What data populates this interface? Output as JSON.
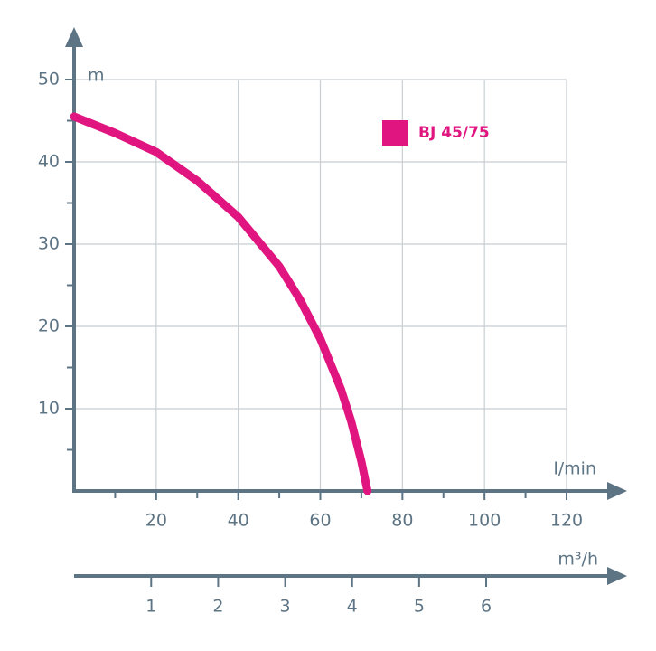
{
  "chart_data": {
    "type": "line",
    "ylabel": "m",
    "xlabel": "l/min",
    "x2label": "m³/h",
    "x": [
      0,
      10,
      20,
      30,
      40,
      50,
      55,
      60,
      65,
      67.5,
      70,
      71.5
    ],
    "series": [
      {
        "name": "BJ 45/75",
        "color": "#e0157f",
        "values": [
          45.5,
          43.5,
          41.2,
          37.7,
          33.3,
          27.3,
          23.3,
          18.5,
          12.4,
          8.5,
          3.6,
          0
        ]
      }
    ],
    "xlim": [
      0,
      120
    ],
    "ylim": [
      0,
      50
    ],
    "xticks": [
      20,
      40,
      60,
      80,
      100,
      120
    ],
    "yticks": [
      10,
      20,
      30,
      40,
      50
    ],
    "xminor": [
      10,
      30,
      50,
      70,
      90,
      110
    ],
    "yminor": [
      5,
      15,
      25,
      35,
      45
    ],
    "x2lim": [
      -0.15,
      7.2
    ],
    "x2ticks": [
      1,
      2,
      3,
      4,
      5,
      6
    ],
    "grid": true,
    "legend": "upper right"
  }
}
